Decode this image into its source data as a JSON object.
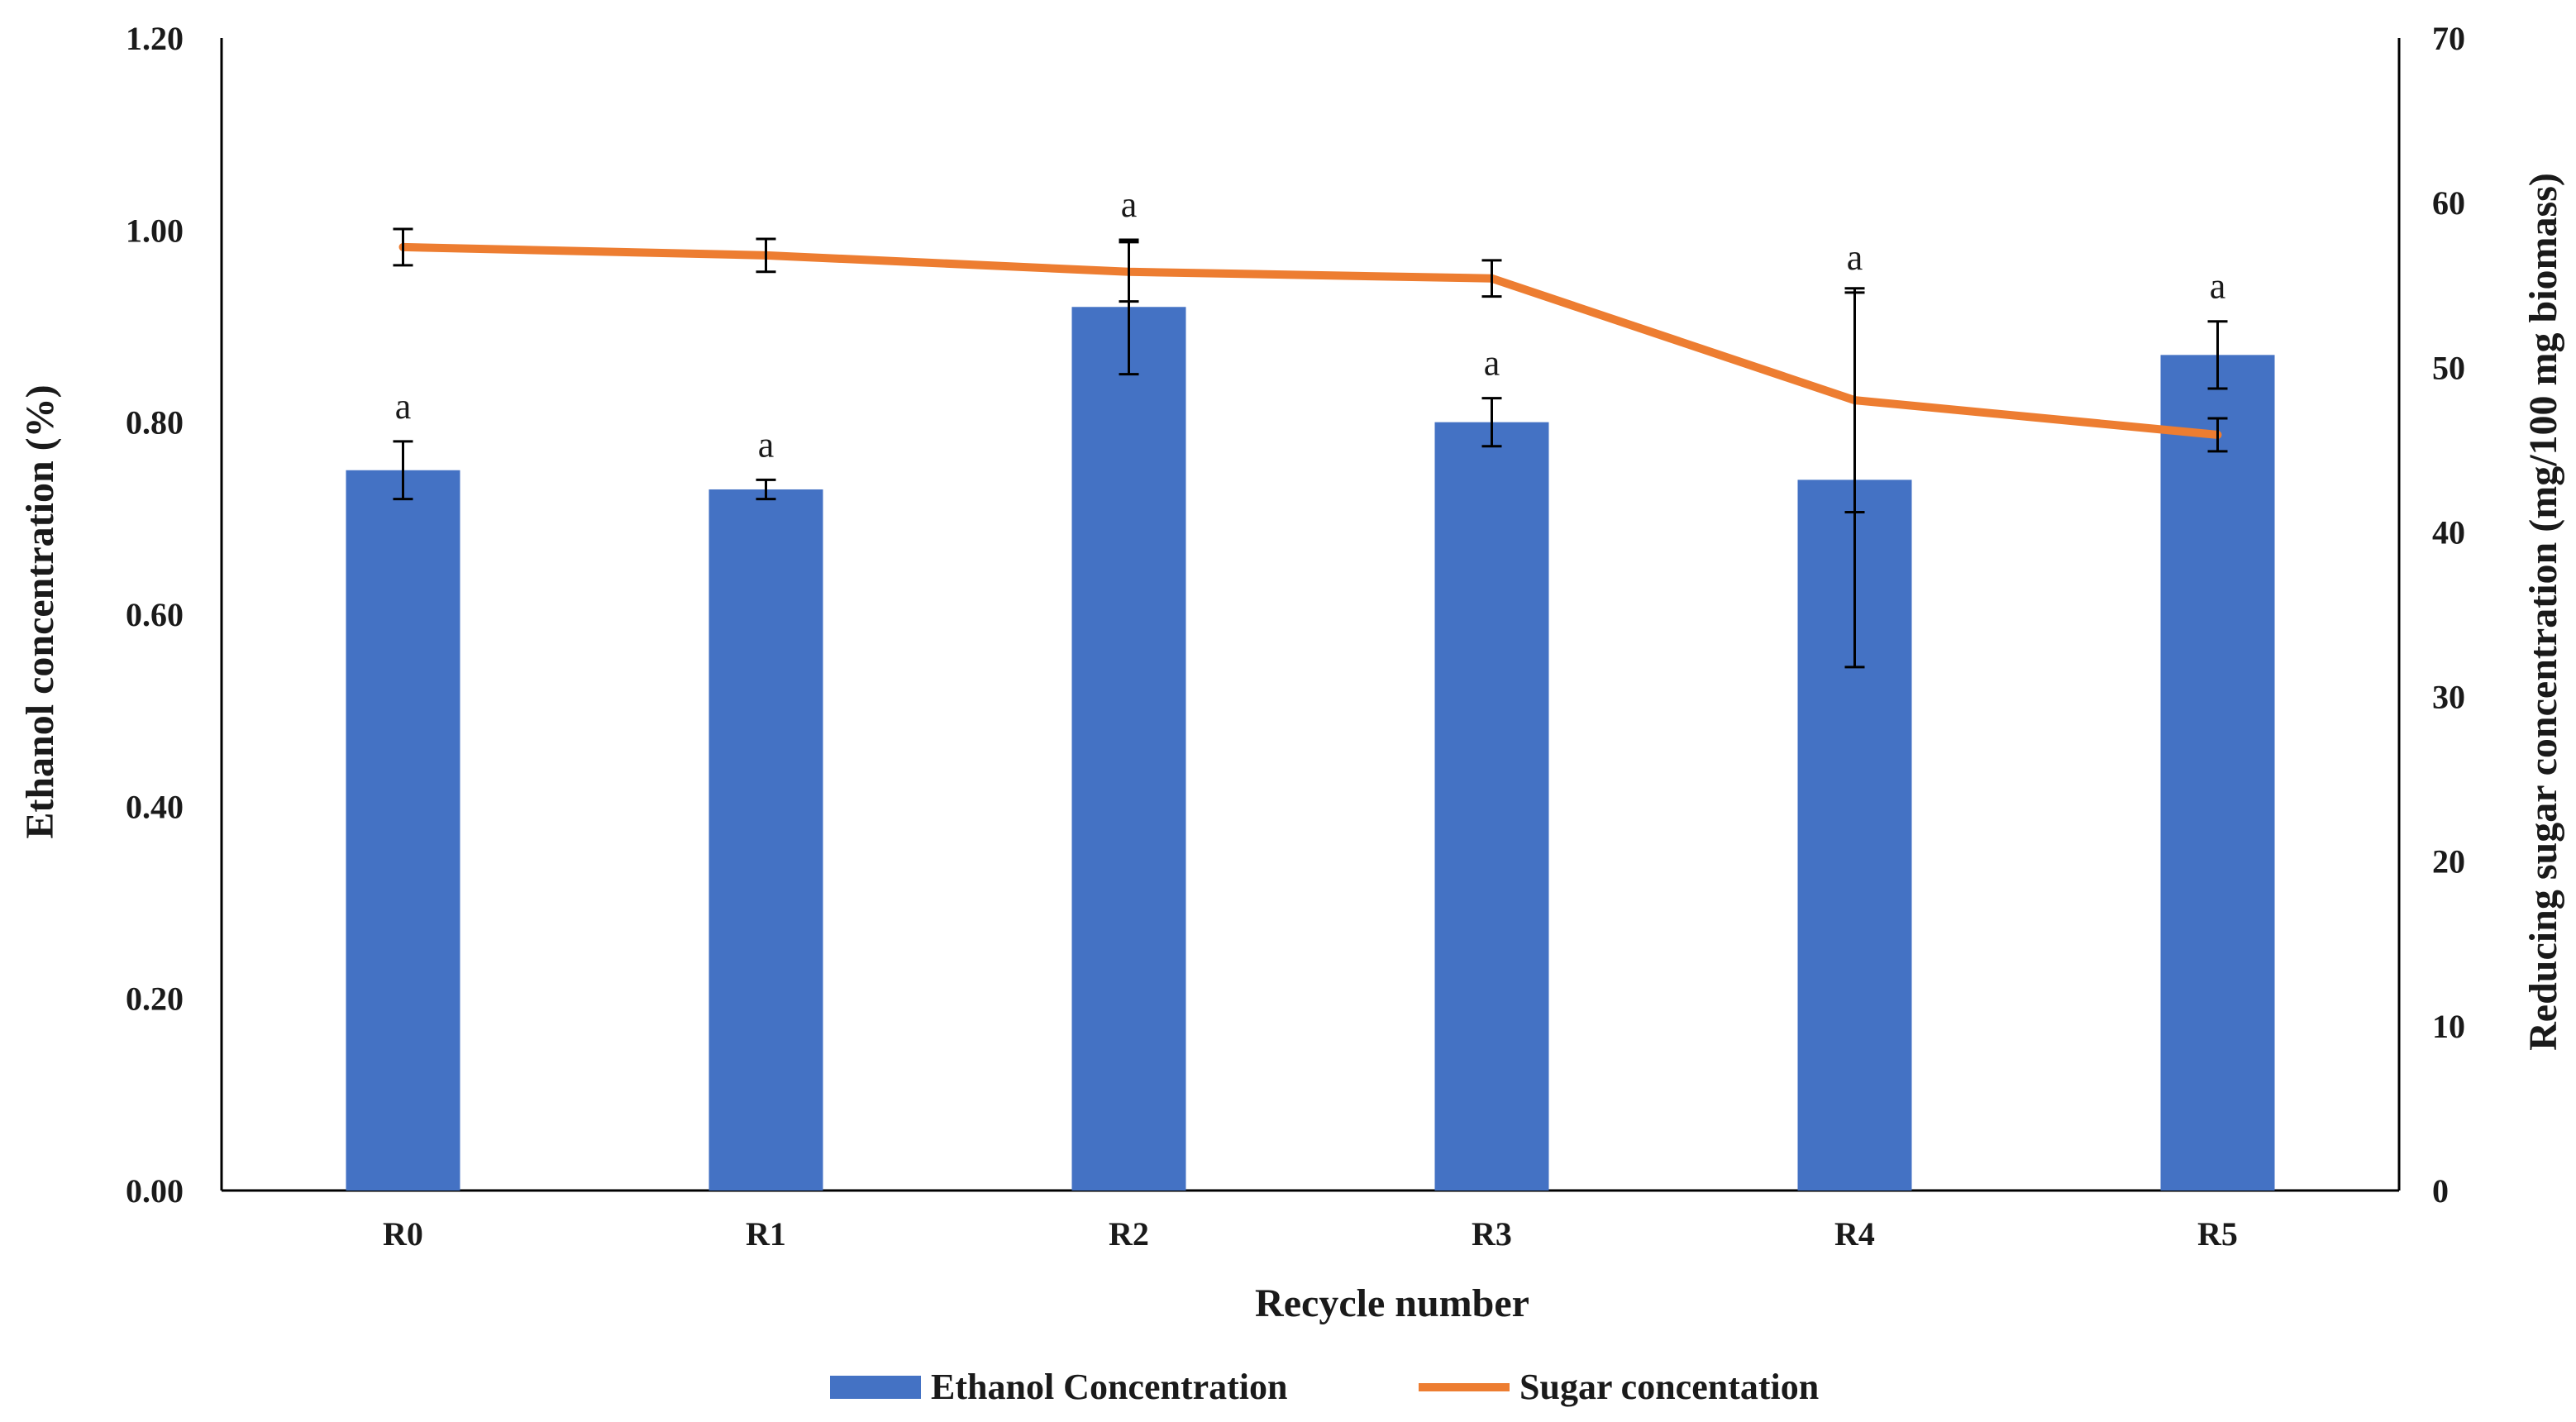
{
  "chart_data": {
    "type": "bar+line",
    "title": "",
    "categories": [
      "R0",
      "R1",
      "R2",
      "R3",
      "R4",
      "R5"
    ],
    "xlabel": "Recycle number",
    "ylabel": "Ethanol concentration (%)",
    "y2label": "Reducing sugar concentration (mg/100 mg biomass)",
    "ylim": [
      0,
      1.2
    ],
    "y2lim": [
      0,
      70
    ],
    "yticks": [
      "0.00",
      "0.20",
      "0.40",
      "0.60",
      "0.80",
      "1.00",
      "1.20"
    ],
    "y2ticks": [
      "0",
      "10",
      "20",
      "30",
      "40",
      "50",
      "60",
      "70"
    ],
    "grid": false,
    "legend_position": "bottom",
    "series": [
      {
        "name": "Ethanol Concentration",
        "type": "bar",
        "axis": "left",
        "color": "#4472C4",
        "values": [
          0.75,
          0.73,
          0.92,
          0.8,
          0.74,
          0.87
        ],
        "errors": [
          0.03,
          0.01,
          0.07,
          0.025,
          0.195,
          0.035
        ],
        "significance": [
          "a",
          "a",
          "a",
          "a",
          "a",
          "a"
        ]
      },
      {
        "name": "Sugar concentation",
        "type": "line",
        "axis": "right",
        "color": "#ED7D31",
        "values": [
          57.3,
          56.8,
          55.8,
          55.4,
          48.0,
          45.9
        ],
        "errors": [
          1.1,
          1.0,
          1.8,
          1.1,
          6.8,
          1.0
        ]
      }
    ]
  }
}
